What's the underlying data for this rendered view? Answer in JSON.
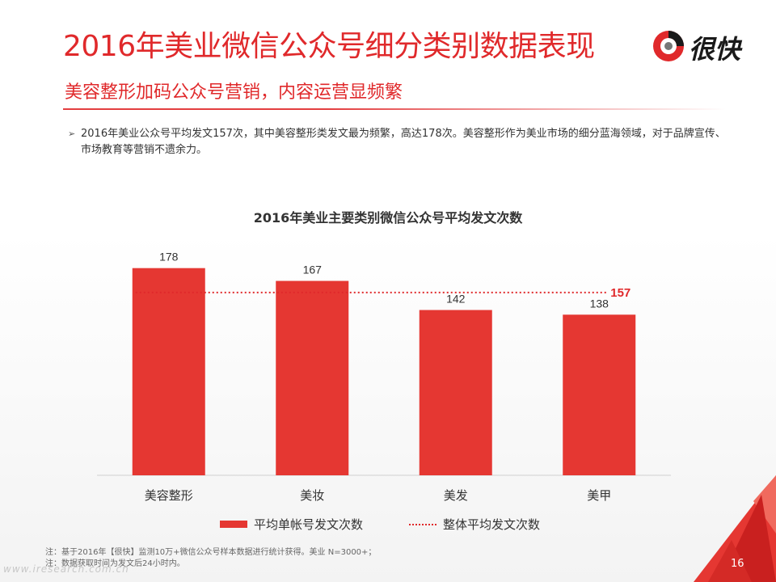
{
  "header": {
    "title": "2016年美业微信公众号细分类别数据表现",
    "subtitle": "美容整形加码公众号营销，内容运营显频繁",
    "logo_text": "很快"
  },
  "bullet": {
    "marker": "➢",
    "text": "2016年美业公众号平均发文157次，其中美容整形类发文最为频繁，高达178次。美容整形作为美业市场的细分蓝海领域，对于品牌宣传、市场教育等营销不遗余力。"
  },
  "chart_data": {
    "type": "bar",
    "title": "2016年美业主要类别微信公众号平均发文次数",
    "categories": [
      "美容整形",
      "美妆",
      "美发",
      "美甲"
    ],
    "series": [
      {
        "name": "平均单帐号发文次数",
        "values": [
          178,
          167,
          142,
          138
        ],
        "color": "#e53732"
      }
    ],
    "reference_line": {
      "name": "整体平均发文次数",
      "value": 157,
      "label": "157",
      "color": "#e0292b",
      "style": "dotted"
    },
    "xlabel": "",
    "ylabel": "",
    "ylim": [
      0,
      200
    ],
    "grid": false,
    "legend": "bottom"
  },
  "notes": [
    "注：基于2016年【很快】监测10万+微信公众号样本数据进行统计获得。美业 N=3000+；",
    "注：数据获取时间为发文后24小时内。"
  ],
  "footer": {
    "page_number": "16",
    "watermark": "www.iresearch.com.cn"
  },
  "colors": {
    "accent": "#e0292b",
    "bar": "#e53732",
    "text": "#333333"
  }
}
